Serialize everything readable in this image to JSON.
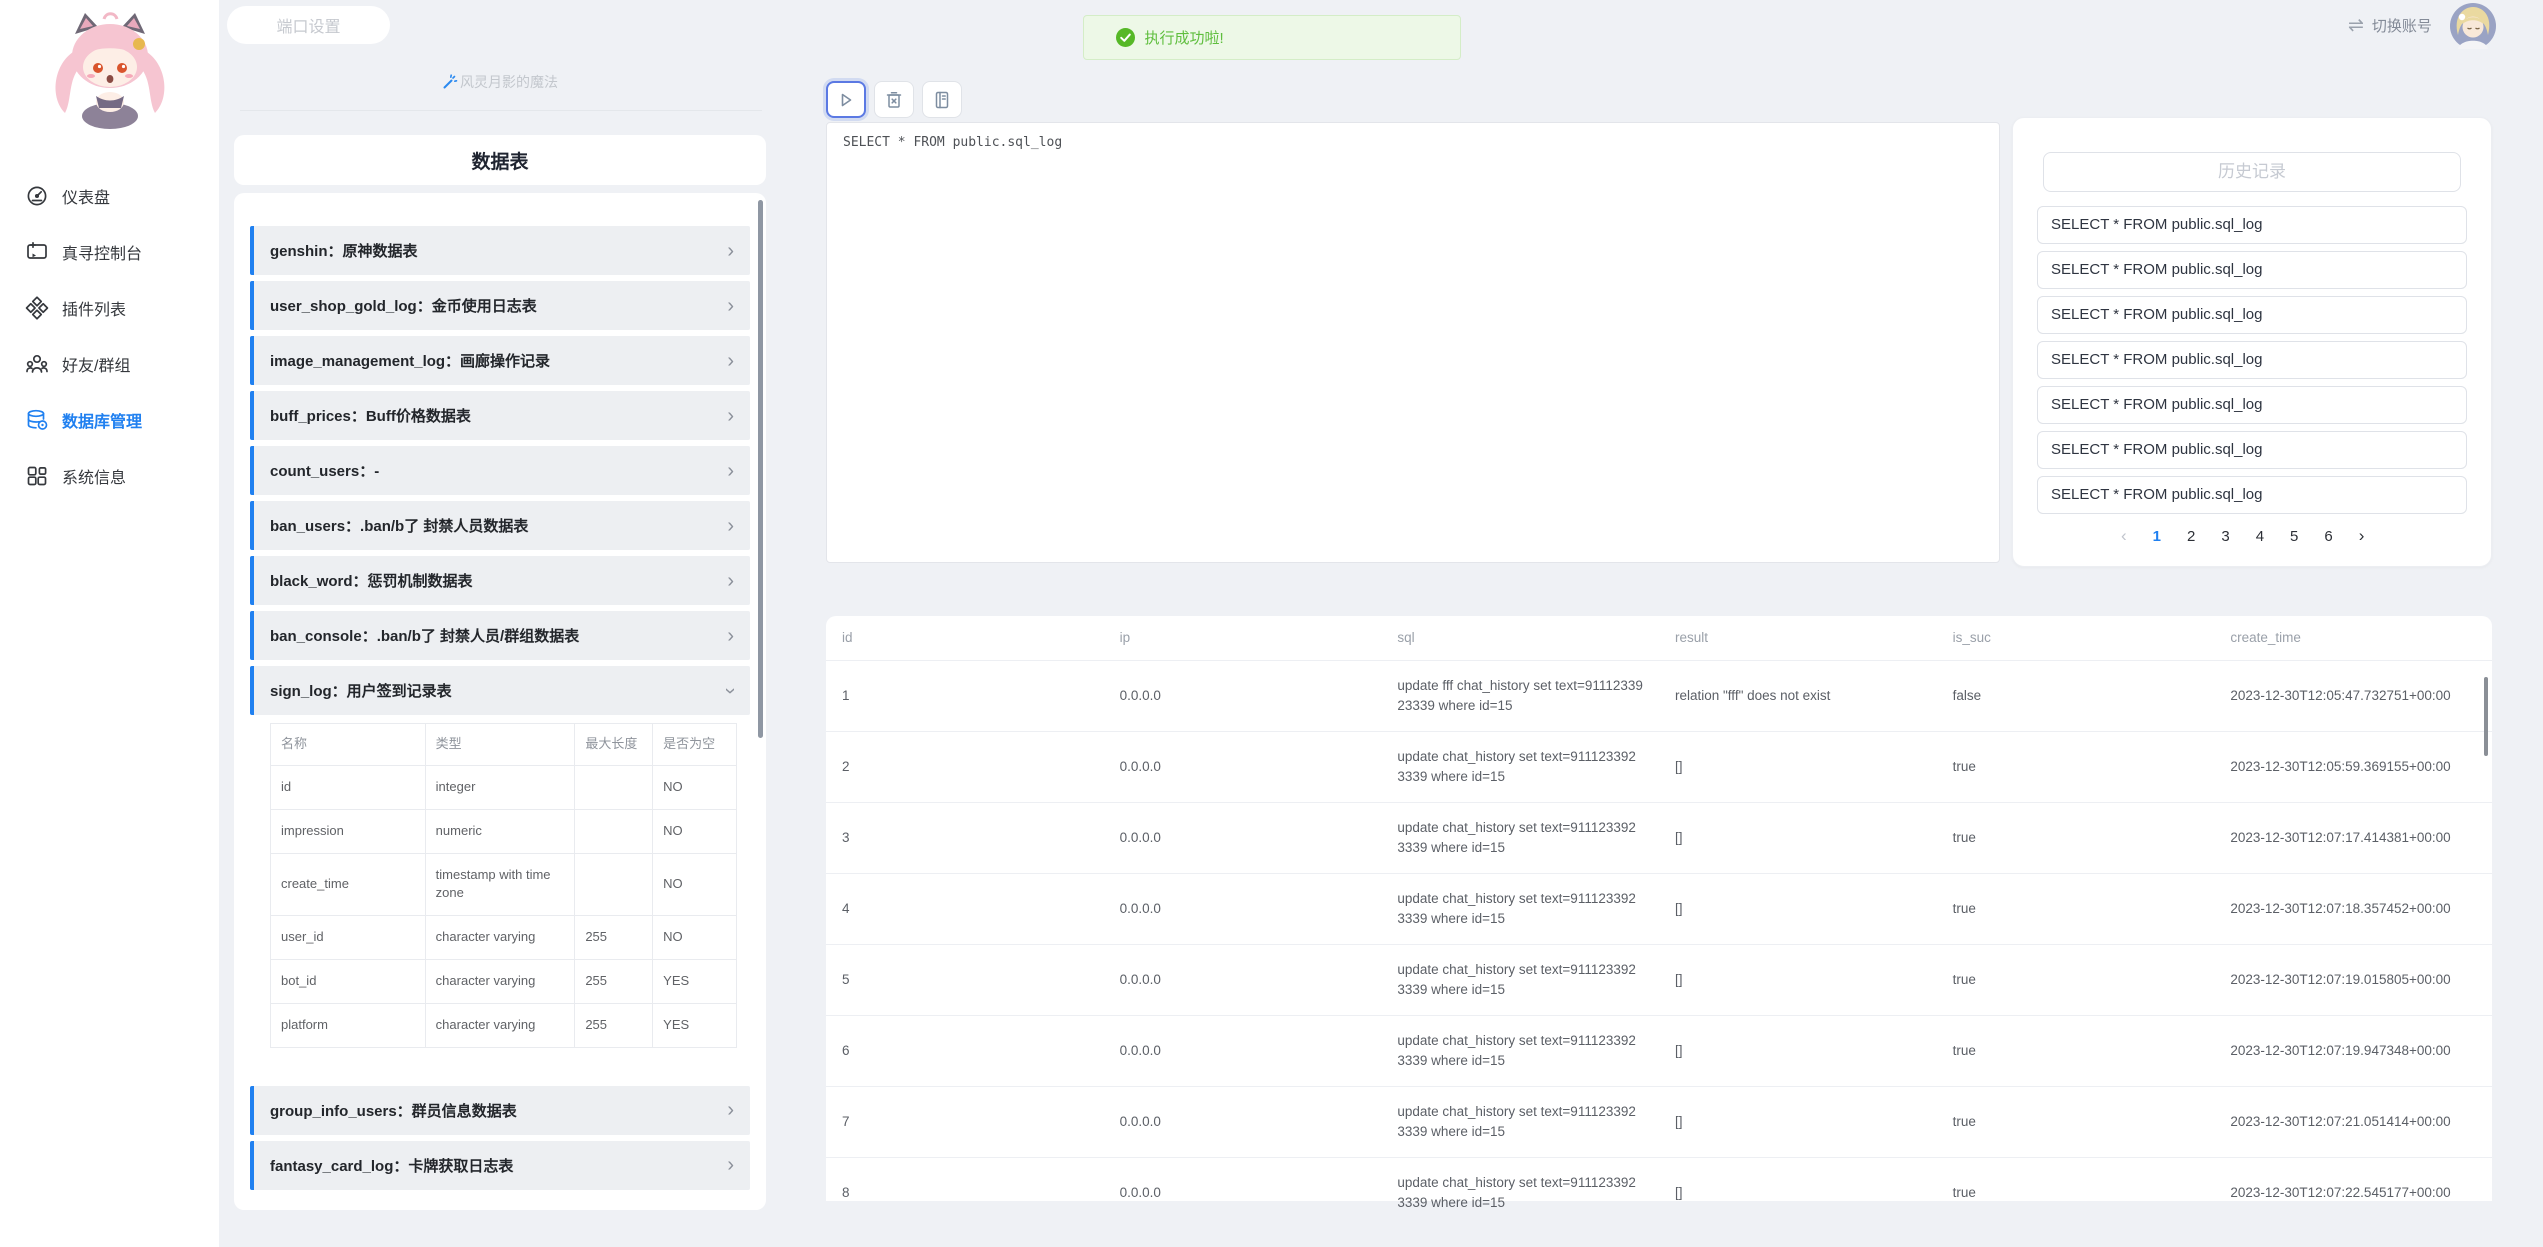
{
  "colors": {
    "primary": "#2080f0",
    "success": "#5fbe3e",
    "page_background": "#eff1f5"
  },
  "sidebar": {
    "mascot_icon": "anime-mascot-logo",
    "items": [
      {
        "id": "dashboard",
        "label": "仪表盘",
        "icon": "gauge-icon",
        "active": false
      },
      {
        "id": "console",
        "label": "真寻控制台",
        "icon": "console-icon",
        "active": false
      },
      {
        "id": "plugins",
        "label": "插件列表",
        "icon": "plugins-icon",
        "active": false
      },
      {
        "id": "friends",
        "label": "好友/群组",
        "icon": "friends-icon",
        "active": false
      },
      {
        "id": "database",
        "label": "数据库管理",
        "icon": "database-icon",
        "active": true
      },
      {
        "id": "system",
        "label": "系统信息",
        "icon": "system-grid-icon",
        "active": false
      }
    ]
  },
  "topbar": {
    "port_button": "端口设置",
    "toast_text": "执行成功啦!",
    "toast_icon": "success-check-icon",
    "switch_icon": "switch-arrows-icon",
    "switch_glyph": "⇌",
    "switch_account": "切换账号",
    "avatar_icon": "user-avatar"
  },
  "tables_panel": {
    "magic_icon": "magic-wand-icon",
    "magic_label": "风灵月影的魔法",
    "title": "数据表",
    "tables": [
      {
        "label": "genshin：原神数据表",
        "expanded": false
      },
      {
        "label": "user_shop_gold_log：金币使用日志表",
        "expanded": false
      },
      {
        "label": "image_management_log：画廊操作记录",
        "expanded": false
      },
      {
        "label": "buff_prices：Buff价格数据表",
        "expanded": false
      },
      {
        "label": "count_users：-",
        "expanded": false
      },
      {
        "label": "ban_users：.ban/b了 封禁人员数据表",
        "expanded": false
      },
      {
        "label": "black_word：惩罚机制数据表",
        "expanded": false
      },
      {
        "label": "ban_console：.ban/b了 封禁人员/群组数据表",
        "expanded": false
      },
      {
        "label": "sign_log：用户签到记录表",
        "expanded": true
      },
      {
        "label": "group_info_users：群员信息数据表",
        "expanded": false
      },
      {
        "label": "fantasy_card_log：卡牌获取日志表",
        "expanded": false
      }
    ],
    "schema": {
      "headers": [
        "名称",
        "类型",
        "最大长度",
        "是否为空"
      ],
      "rows": [
        [
          "id",
          "integer",
          "",
          "NO"
        ],
        [
          "impression",
          "numeric",
          "",
          "NO"
        ],
        [
          "create_time",
          "timestamp with time zone",
          "",
          "NO"
        ],
        [
          "user_id",
          "character varying",
          "255",
          "NO"
        ],
        [
          "bot_id",
          "character varying",
          "255",
          "YES"
        ],
        [
          "platform",
          "character varying",
          "255",
          "YES"
        ]
      ]
    }
  },
  "editor": {
    "sql": "SELECT * FROM public.sql_log",
    "toolbar": [
      {
        "id": "run",
        "icon": "play-icon",
        "focused": true
      },
      {
        "id": "clear",
        "icon": "trash-icon",
        "focused": false
      },
      {
        "id": "log",
        "icon": "journal-icon",
        "focused": false
      }
    ]
  },
  "history": {
    "title": "历史记录",
    "items": [
      "SELECT * FROM public.sql_log",
      "SELECT * FROM public.sql_log",
      "SELECT * FROM public.sql_log",
      "SELECT * FROM public.sql_log",
      "SELECT * FROM public.sql_log",
      "SELECT * FROM public.sql_log",
      "SELECT * FROM public.sql_log"
    ],
    "pagination": {
      "pages": [
        "1",
        "2",
        "3",
        "4",
        "5",
        "6"
      ],
      "current": "1",
      "prev": "‹",
      "next": "›"
    }
  },
  "results": {
    "columns": [
      "id",
      "ip",
      "sql",
      "result",
      "is_suc",
      "create_time"
    ],
    "rows": [
      [
        "1",
        "0.0.0.0",
        "update fff chat_history set text=9111233923339 where id=15",
        "relation \"fff\" does not exist",
        "false",
        "2023-12-30T12:05:47.732751+00:00"
      ],
      [
        "2",
        "0.0.0.0",
        "update chat_history set text=9111233923339 where id=15",
        "[]",
        "true",
        "2023-12-30T12:05:59.369155+00:00"
      ],
      [
        "3",
        "0.0.0.0",
        "update chat_history set text=9111233923339 where id=15",
        "[]",
        "true",
        "2023-12-30T12:07:17.414381+00:00"
      ],
      [
        "4",
        "0.0.0.0",
        "update chat_history set text=9111233923339 where id=15",
        "[]",
        "true",
        "2023-12-30T12:07:18.357452+00:00"
      ],
      [
        "5",
        "0.0.0.0",
        "update chat_history set text=9111233923339 where id=15",
        "[]",
        "true",
        "2023-12-30T12:07:19.015805+00:00"
      ],
      [
        "6",
        "0.0.0.0",
        "update chat_history set text=9111233923339 where id=15",
        "[]",
        "true",
        "2023-12-30T12:07:19.947348+00:00"
      ],
      [
        "7",
        "0.0.0.0",
        "update chat_history set text=9111233923339 where id=15",
        "[]",
        "true",
        "2023-12-30T12:07:21.051414+00:00"
      ],
      [
        "8",
        "0.0.0.0",
        "update chat_history set text=9111233923339 where id=15",
        "[]",
        "true",
        "2023-12-30T12:07:22.545177+00:00"
      ]
    ]
  }
}
